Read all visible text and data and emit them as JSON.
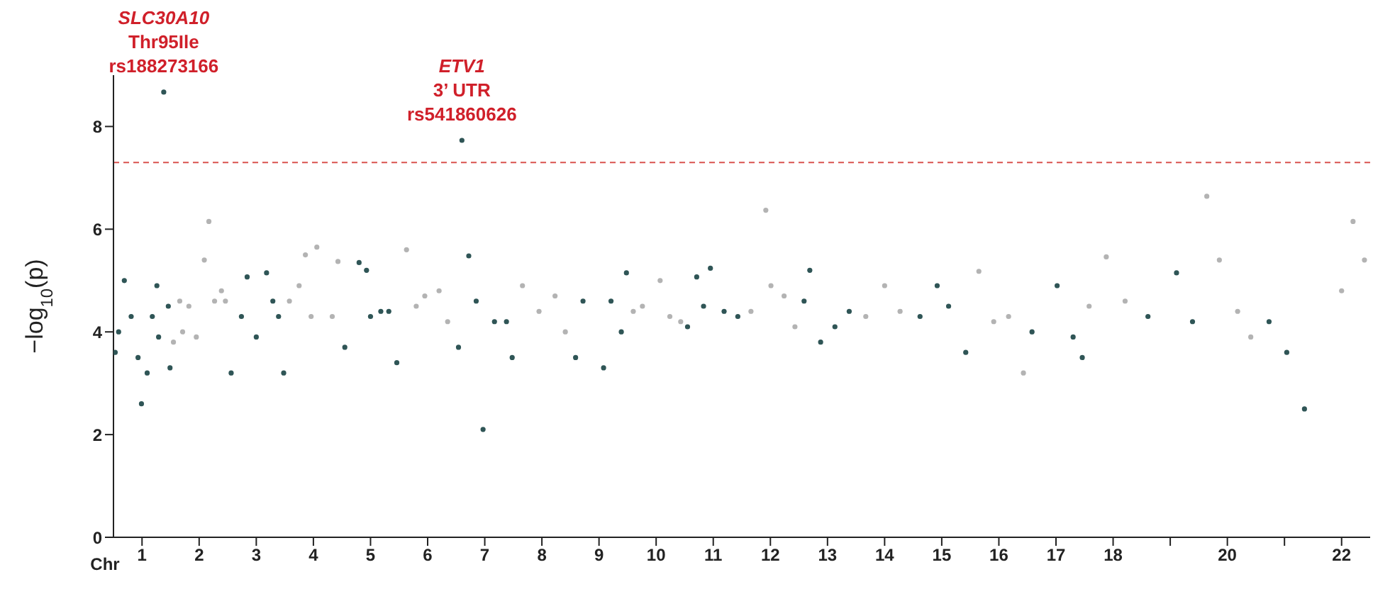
{
  "chart_data": {
    "type": "scatter",
    "xlabel": "Chr",
    "ylabel": "−log$_{10}$(p)",
    "xlim": [
      0.5,
      22.5
    ],
    "ylim": [
      0,
      9
    ],
    "yticks": [
      0,
      2,
      4,
      6,
      8
    ],
    "xticks": [
      1,
      2,
      3,
      4,
      5,
      6,
      7,
      8,
      9,
      10,
      11,
      12,
      13,
      14,
      15,
      16,
      17,
      18,
      {
        "value": 19,
        "label": null
      },
      20,
      {
        "value": 21,
        "label": null
      },
      22
    ],
    "grid": false,
    "legend": false,
    "marker": "circle",
    "ref_lines": [
      {
        "axis": "y",
        "value": 7.3,
        "color": "#d9534f",
        "line_style": "dashed"
      }
    ],
    "annotations": [
      {
        "text": "SLC30A10\nThr95Ile\nrs188273166",
        "x": 1.38,
        "y": 8.67
      },
      {
        "text": "ETV1\n3’ UTR\nrs541860626",
        "x": 6.6,
        "y": 7.73
      }
    ],
    "series": [
      {
        "color": "#2f5556",
        "x": [
          0.53,
          0.59,
          0.69,
          0.81,
          0.93,
          0.99,
          1.09,
          1.18,
          1.26,
          1.29,
          1.38,
          1.46,
          1.49,
          2.56,
          2.74,
          2.84,
          3.0,
          3.18,
          3.29,
          3.39,
          3.48,
          4.55,
          4.8,
          4.93,
          5.0,
          5.18,
          5.32,
          5.46,
          6.54,
          6.6,
          6.72,
          6.85,
          6.97,
          7.17,
          7.38,
          7.48,
          8.59,
          8.72,
          9.08,
          9.21,
          9.48,
          9.39,
          10.55,
          10.71,
          10.83,
          10.95,
          11.19,
          11.43,
          12.59,
          12.69,
          12.88,
          13.13,
          13.38,
          14.62,
          14.92,
          15.12,
          15.42,
          16.58,
          17.02,
          17.3,
          17.46,
          18.61,
          19.11,
          19.39,
          20.73,
          21.04,
          21.35
        ],
        "values": [
          3.6,
          4.0,
          5.0,
          4.3,
          3.5,
          2.6,
          3.2,
          4.3,
          4.9,
          3.9,
          8.67,
          4.5,
          3.3,
          3.2,
          4.3,
          5.07,
          3.9,
          5.15,
          4.6,
          4.3,
          3.2,
          3.7,
          5.35,
          5.2,
          4.3,
          4.4,
          4.4,
          3.4,
          3.7,
          7.73,
          5.48,
          4.6,
          2.1,
          4.2,
          4.2,
          3.5,
          3.5,
          4.6,
          3.3,
          4.6,
          5.15,
          4.0,
          4.1,
          5.07,
          4.5,
          5.24,
          4.4,
          4.3,
          4.6,
          5.2,
          3.8,
          4.1,
          4.4,
          4.3,
          4.9,
          4.5,
          3.6,
          4.0,
          4.9,
          3.9,
          3.5,
          4.3,
          5.15,
          4.2,
          4.2,
          3.6,
          2.5
        ]
      },
      {
        "color": "#b3b3b3",
        "x": [
          1.55,
          1.66,
          1.71,
          1.82,
          1.95,
          2.09,
          2.17,
          2.27,
          2.39,
          2.46,
          3.58,
          3.75,
          3.86,
          3.96,
          4.06,
          4.33,
          4.43,
          5.63,
          5.8,
          5.95,
          6.2,
          6.35,
          7.66,
          7.95,
          8.23,
          8.41,
          9.6,
          9.76,
          10.07,
          10.24,
          10.43,
          11.66,
          11.92,
          12.01,
          12.24,
          12.43,
          13.67,
          14.0,
          14.27,
          15.65,
          15.91,
          16.17,
          16.43,
          17.58,
          17.88,
          18.21,
          19.64,
          19.86,
          20.18,
          20.41,
          22.0,
          22.2,
          22.4
        ],
        "values": [
          3.8,
          4.6,
          4.0,
          4.5,
          3.9,
          5.4,
          6.15,
          4.6,
          4.8,
          4.6,
          4.6,
          4.9,
          5.5,
          4.3,
          5.65,
          4.3,
          5.37,
          5.6,
          4.5,
          4.7,
          4.8,
          4.2,
          4.9,
          4.4,
          4.7,
          4.0,
          4.4,
          4.5,
          5.0,
          4.3,
          4.2,
          4.4,
          6.37,
          4.9,
          4.7,
          4.1,
          4.3,
          4.9,
          4.4,
          5.18,
          4.2,
          4.3,
          3.2,
          4.5,
          5.46,
          4.6,
          6.64,
          5.4,
          4.4,
          3.9,
          4.8,
          6.15,
          5.4
        ]
      }
    ]
  }
}
